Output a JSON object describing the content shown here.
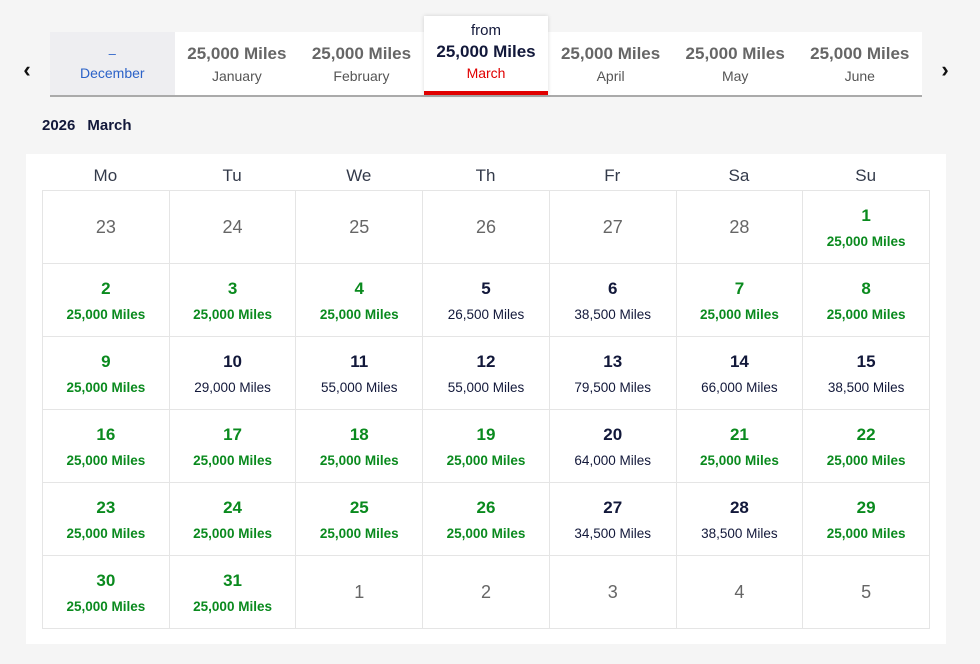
{
  "nav": {
    "prev_icon": "chevron-left-icon",
    "next_icon": "chevron-right-icon"
  },
  "months": [
    {
      "miles": "–",
      "month": "December",
      "state": "empty"
    },
    {
      "miles": "25,000 Miles",
      "month": "January",
      "state": "normal"
    },
    {
      "miles": "25,000 Miles",
      "month": "February",
      "state": "normal"
    },
    {
      "from": "from",
      "miles": "25,000 Miles",
      "month": "March",
      "state": "active"
    },
    {
      "miles": "25,000 Miles",
      "month": "April",
      "state": "normal"
    },
    {
      "miles": "25,000 Miles",
      "month": "May",
      "state": "normal"
    },
    {
      "miles": "25,000 Miles",
      "month": "June",
      "state": "normal"
    }
  ],
  "heading": {
    "year": "2026",
    "month": "March"
  },
  "weekdays": [
    "Mo",
    "Tu",
    "We",
    "Th",
    "Fr",
    "Sa",
    "Su"
  ],
  "colors": {
    "lowest": "#0a8a1e",
    "regular": "#12183a",
    "accent": "#e00000"
  },
  "days": [
    {
      "d": "23",
      "s": "other"
    },
    {
      "d": "24",
      "s": "other"
    },
    {
      "d": "25",
      "s": "other"
    },
    {
      "d": "26",
      "s": "other"
    },
    {
      "d": "27",
      "s": "other"
    },
    {
      "d": "28",
      "s": "other"
    },
    {
      "d": "1",
      "m": "25,000 Miles",
      "s": "green"
    },
    {
      "d": "2",
      "m": "25,000 Miles",
      "s": "green"
    },
    {
      "d": "3",
      "m": "25,000 Miles",
      "s": "green"
    },
    {
      "d": "4",
      "m": "25,000 Miles",
      "s": "green"
    },
    {
      "d": "5",
      "m": "26,500 Miles",
      "s": "dark"
    },
    {
      "d": "6",
      "m": "38,500 Miles",
      "s": "dark"
    },
    {
      "d": "7",
      "m": "25,000 Miles",
      "s": "green"
    },
    {
      "d": "8",
      "m": "25,000 Miles",
      "s": "green"
    },
    {
      "d": "9",
      "m": "25,000 Miles",
      "s": "green"
    },
    {
      "d": "10",
      "m": "29,000 Miles",
      "s": "dark"
    },
    {
      "d": "11",
      "m": "55,000 Miles",
      "s": "dark"
    },
    {
      "d": "12",
      "m": "55,000 Miles",
      "s": "dark"
    },
    {
      "d": "13",
      "m": "79,500 Miles",
      "s": "dark"
    },
    {
      "d": "14",
      "m": "66,000 Miles",
      "s": "dark"
    },
    {
      "d": "15",
      "m": "38,500 Miles",
      "s": "dark"
    },
    {
      "d": "16",
      "m": "25,000 Miles",
      "s": "green"
    },
    {
      "d": "17",
      "m": "25,000 Miles",
      "s": "green"
    },
    {
      "d": "18",
      "m": "25,000 Miles",
      "s": "green"
    },
    {
      "d": "19",
      "m": "25,000 Miles",
      "s": "green"
    },
    {
      "d": "20",
      "m": "64,000 Miles",
      "s": "dark"
    },
    {
      "d": "21",
      "m": "25,000 Miles",
      "s": "green"
    },
    {
      "d": "22",
      "m": "25,000 Miles",
      "s": "green"
    },
    {
      "d": "23",
      "m": "25,000 Miles",
      "s": "green"
    },
    {
      "d": "24",
      "m": "25,000 Miles",
      "s": "green"
    },
    {
      "d": "25",
      "m": "25,000 Miles",
      "s": "green"
    },
    {
      "d": "26",
      "m": "25,000 Miles",
      "s": "green"
    },
    {
      "d": "27",
      "m": "34,500 Miles",
      "s": "dark"
    },
    {
      "d": "28",
      "m": "38,500 Miles",
      "s": "dark"
    },
    {
      "d": "29",
      "m": "25,000 Miles",
      "s": "green"
    },
    {
      "d": "30",
      "m": "25,000 Miles",
      "s": "green"
    },
    {
      "d": "31",
      "m": "25,000 Miles",
      "s": "green"
    },
    {
      "d": "1",
      "s": "other"
    },
    {
      "d": "2",
      "s": "other"
    },
    {
      "d": "3",
      "s": "other"
    },
    {
      "d": "4",
      "s": "other"
    },
    {
      "d": "5",
      "s": "other"
    }
  ]
}
